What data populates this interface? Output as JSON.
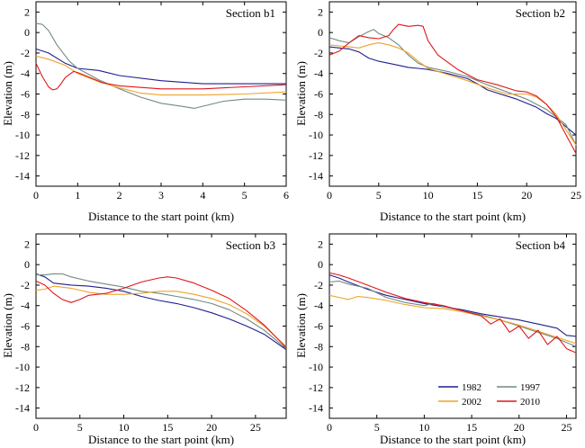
{
  "colors": {
    "1982": "#1f1f8f",
    "1997": "#6f8c82",
    "2002": "#f0a22a",
    "2010": "#e0161a"
  },
  "legend": {
    "position": "bottom-right of Section b4",
    "entries": [
      "1982",
      "1997",
      "2002",
      "2010"
    ]
  },
  "chart_data": [
    {
      "type": "line",
      "title": "Section b1",
      "xlabel": "Distance to the start point (km)",
      "ylabel": "Elevation (m)",
      "xlim": [
        0,
        6
      ],
      "ylim": [
        -15,
        3
      ],
      "xticks": [
        0,
        1,
        2,
        3,
        4,
        5,
        6
      ],
      "yticks": [
        2,
        0,
        -2,
        -4,
        -6,
        -8,
        -10,
        -12,
        -14
      ],
      "series": [
        {
          "name": "1982",
          "x": [
            0,
            0.3,
            0.7,
            1.0,
            1.5,
            2.0,
            3.0,
            4.0,
            5.0,
            6.0
          ],
          "y": [
            -1.6,
            -2.0,
            -3.0,
            -3.5,
            -3.7,
            -4.2,
            -4.7,
            -5.0,
            -5.0,
            -5.0
          ]
        },
        {
          "name": "1997",
          "x": [
            0,
            0.15,
            0.3,
            0.5,
            0.8,
            1.0,
            1.5,
            2.0,
            2.5,
            3.0,
            3.5,
            3.8,
            4.1,
            4.5,
            5.0,
            5.5,
            6.0
          ],
          "y": [
            0.9,
            0.8,
            0.2,
            -1.2,
            -2.8,
            -3.5,
            -4.6,
            -5.5,
            -6.3,
            -6.9,
            -7.2,
            -7.4,
            -7.1,
            -6.7,
            -6.5,
            -6.5,
            -6.6
          ]
        },
        {
          "name": "2002",
          "x": [
            0,
            0.3,
            0.7,
            1.0,
            1.5,
            2.0,
            2.5,
            3.0,
            4.0,
            5.0,
            6.0
          ],
          "y": [
            -2.3,
            -2.6,
            -3.2,
            -4.0,
            -4.8,
            -5.4,
            -5.9,
            -6.1,
            -6.1,
            -6.0,
            -5.8
          ]
        },
        {
          "name": "2010",
          "x": [
            0,
            0.15,
            0.3,
            0.4,
            0.5,
            0.6,
            0.7,
            0.9,
            1.0,
            1.3,
            1.6,
            2.0,
            3.0,
            4.0,
            5.0,
            6.0
          ],
          "y": [
            -3.0,
            -4.3,
            -5.3,
            -5.6,
            -5.5,
            -5.0,
            -4.4,
            -3.8,
            -3.9,
            -4.4,
            -4.9,
            -5.2,
            -5.5,
            -5.5,
            -5.3,
            -5.1
          ]
        }
      ]
    },
    {
      "type": "line",
      "title": "Section b2",
      "xlabel": "Distance to the start point (km)",
      "ylabel": "Elevation (m)",
      "xlim": [
        0,
        25
      ],
      "ylim": [
        -15,
        3
      ],
      "xticks": [
        0,
        5,
        10,
        15,
        20,
        25
      ],
      "yticks": [
        2,
        0,
        -2,
        -4,
        -6,
        -8,
        -10,
        -12,
        -14
      ],
      "series": [
        {
          "name": "1982",
          "x": [
            0,
            1,
            2,
            3,
            4,
            5,
            6,
            7,
            8,
            9,
            10,
            12,
            14,
            15,
            16,
            17,
            18,
            19,
            20,
            21,
            22,
            23,
            24,
            25
          ],
          "y": [
            -1.4,
            -1.5,
            -1.6,
            -1.9,
            -2.5,
            -2.8,
            -3.0,
            -3.2,
            -3.4,
            -3.5,
            -3.6,
            -4.0,
            -4.5,
            -5.0,
            -5.6,
            -5.9,
            -6.2,
            -6.5,
            -6.9,
            -7.3,
            -7.9,
            -8.4,
            -9.2,
            -10.0
          ]
        },
        {
          "name": "1997",
          "x": [
            0,
            1,
            2,
            3,
            4,
            4.5,
            5,
            6,
            7,
            8,
            9,
            10,
            12,
            14,
            16,
            18,
            20,
            22,
            24,
            25
          ],
          "y": [
            -0.5,
            -0.8,
            -1.0,
            -0.4,
            0.1,
            0.3,
            -0.1,
            -0.5,
            -1.2,
            -2.2,
            -3.0,
            -3.4,
            -3.8,
            -4.3,
            -5.1,
            -5.8,
            -6.5,
            -7.5,
            -9.0,
            -11.0
          ]
        },
        {
          "name": "2002",
          "x": [
            0,
            1,
            2,
            3,
            4,
            5,
            6,
            7,
            8,
            9,
            10,
            12,
            14,
            16,
            18,
            20,
            21,
            22,
            23,
            24,
            25
          ],
          "y": [
            -1.2,
            -1.3,
            -1.4,
            -1.5,
            -1.2,
            -1.0,
            -1.2,
            -1.5,
            -2.0,
            -2.8,
            -3.5,
            -4.1,
            -4.7,
            -5.4,
            -6.0,
            -6.0,
            -6.3,
            -7.0,
            -8.0,
            -9.5,
            -11.0
          ]
        },
        {
          "name": "2010",
          "x": [
            0,
            1,
            2,
            3,
            4,
            5,
            6,
            6.5,
            7,
            8,
            9,
            9.5,
            10,
            11,
            12,
            13,
            15,
            17,
            19,
            20,
            21,
            22,
            23,
            24,
            25
          ],
          "y": [
            -2.2,
            -1.8,
            -1.0,
            -0.3,
            -0.5,
            -0.6,
            -0.3,
            0.3,
            0.8,
            0.6,
            0.7,
            0.6,
            -0.8,
            -2.2,
            -2.9,
            -3.6,
            -4.6,
            -5.1,
            -5.7,
            -5.8,
            -6.2,
            -7.0,
            -8.2,
            -10.0,
            -11.8
          ]
        }
      ]
    },
    {
      "type": "line",
      "title": "Section b3",
      "xlabel": "Distance to the start point (km)",
      "ylabel": "Elevation (m)",
      "xlim": [
        0,
        28.5
      ],
      "ylim": [
        -15,
        3
      ],
      "xticks": [
        0,
        5,
        10,
        15,
        20,
        25
      ],
      "yticks": [
        2,
        0,
        -2,
        -4,
        -6,
        -8,
        -10,
        -12,
        -14
      ],
      "series": [
        {
          "name": "1982",
          "x": [
            0,
            1,
            2,
            4,
            6,
            8,
            10,
            12,
            14,
            16,
            18,
            20,
            22,
            24,
            26,
            27,
            28.5
          ],
          "y": [
            -0.9,
            -1.2,
            -1.8,
            -2.0,
            -2.1,
            -2.3,
            -2.6,
            -3.1,
            -3.5,
            -3.8,
            -4.2,
            -4.7,
            -5.3,
            -6.0,
            -6.8,
            -7.4,
            -8.3
          ]
        },
        {
          "name": "1997",
          "x": [
            0,
            1,
            2,
            3,
            4,
            6,
            8,
            10,
            12,
            14,
            16,
            18,
            20,
            22,
            24,
            26,
            28.5
          ],
          "y": [
            -1.0,
            -1.0,
            -0.9,
            -0.9,
            -1.2,
            -1.6,
            -1.9,
            -2.2,
            -2.6,
            -2.8,
            -3.1,
            -3.4,
            -3.8,
            -4.4,
            -5.3,
            -6.4,
            -8.2
          ]
        },
        {
          "name": "2002",
          "x": [
            0,
            1,
            2,
            4,
            6,
            8,
            10,
            12,
            14,
            16,
            18,
            20,
            22,
            24,
            26,
            28.5
          ],
          "y": [
            -2.5,
            -2.4,
            -2.1,
            -2.3,
            -2.7,
            -2.9,
            -2.9,
            -2.8,
            -2.6,
            -2.6,
            -2.9,
            -3.3,
            -3.9,
            -4.8,
            -6.0,
            -8.0
          ]
        },
        {
          "name": "2010",
          "x": [
            0,
            1,
            2,
            3,
            4,
            5,
            6,
            8,
            10,
            12,
            14,
            15,
            16,
            18,
            20,
            22,
            24,
            26,
            28.5
          ],
          "y": [
            -1.6,
            -2.0,
            -2.8,
            -3.4,
            -3.7,
            -3.4,
            -3.0,
            -2.8,
            -2.3,
            -1.7,
            -1.3,
            -1.2,
            -1.3,
            -1.8,
            -2.5,
            -3.3,
            -4.5,
            -5.9,
            -8.1
          ]
        }
      ]
    },
    {
      "type": "line",
      "title": "Section b4",
      "xlabel": "Distance to the start point (km)",
      "ylabel": "Elevation (m)",
      "xlim": [
        0,
        26
      ],
      "ylim": [
        -15,
        3
      ],
      "xticks": [
        0,
        5,
        10,
        15,
        20,
        25
      ],
      "yticks": [
        2,
        0,
        -2,
        -4,
        -6,
        -8,
        -10,
        -12,
        -14
      ],
      "series": [
        {
          "name": "1982",
          "x": [
            0,
            1,
            2,
            4,
            6,
            8,
            10,
            12,
            14,
            16,
            18,
            20,
            22,
            24,
            25,
            26
          ],
          "y": [
            -1.0,
            -1.3,
            -1.7,
            -2.4,
            -3.0,
            -3.4,
            -3.8,
            -4.1,
            -4.4,
            -4.8,
            -5.1,
            -5.4,
            -5.8,
            -6.2,
            -6.9,
            -7.0
          ]
        },
        {
          "name": "1997",
          "x": [
            0,
            1,
            2,
            4,
            6,
            8,
            10,
            11,
            12,
            14,
            16,
            18,
            20,
            22,
            24,
            26
          ],
          "y": [
            -1.7,
            -1.6,
            -1.9,
            -2.3,
            -3.2,
            -3.7,
            -4.0,
            -3.8,
            -4.1,
            -4.5,
            -4.9,
            -5.4,
            -6.0,
            -6.6,
            -7.2,
            -8.0
          ]
        },
        {
          "name": "2002",
          "x": [
            0,
            1,
            2,
            3,
            4,
            6,
            8,
            10,
            12,
            14,
            16,
            18,
            20,
            22,
            24,
            26
          ],
          "y": [
            -3.0,
            -3.2,
            -3.4,
            -3.1,
            -3.2,
            -3.5,
            -3.9,
            -4.2,
            -4.3,
            -4.6,
            -5.0,
            -5.4,
            -5.9,
            -6.5,
            -7.1,
            -7.7
          ]
        },
        {
          "name": "2010",
          "x": [
            0,
            1,
            2,
            4,
            6,
            8,
            10,
            12,
            14,
            16,
            17,
            18,
            19,
            20,
            21,
            22,
            23,
            24,
            25,
            26
          ],
          "y": [
            -0.8,
            -1.0,
            -1.3,
            -2.0,
            -2.7,
            -3.3,
            -3.7,
            -4.0,
            -4.5,
            -5.0,
            -5.8,
            -5.3,
            -6.6,
            -6.0,
            -7.2,
            -6.4,
            -7.8,
            -7.0,
            -8.2,
            -8.6
          ]
        }
      ]
    }
  ]
}
